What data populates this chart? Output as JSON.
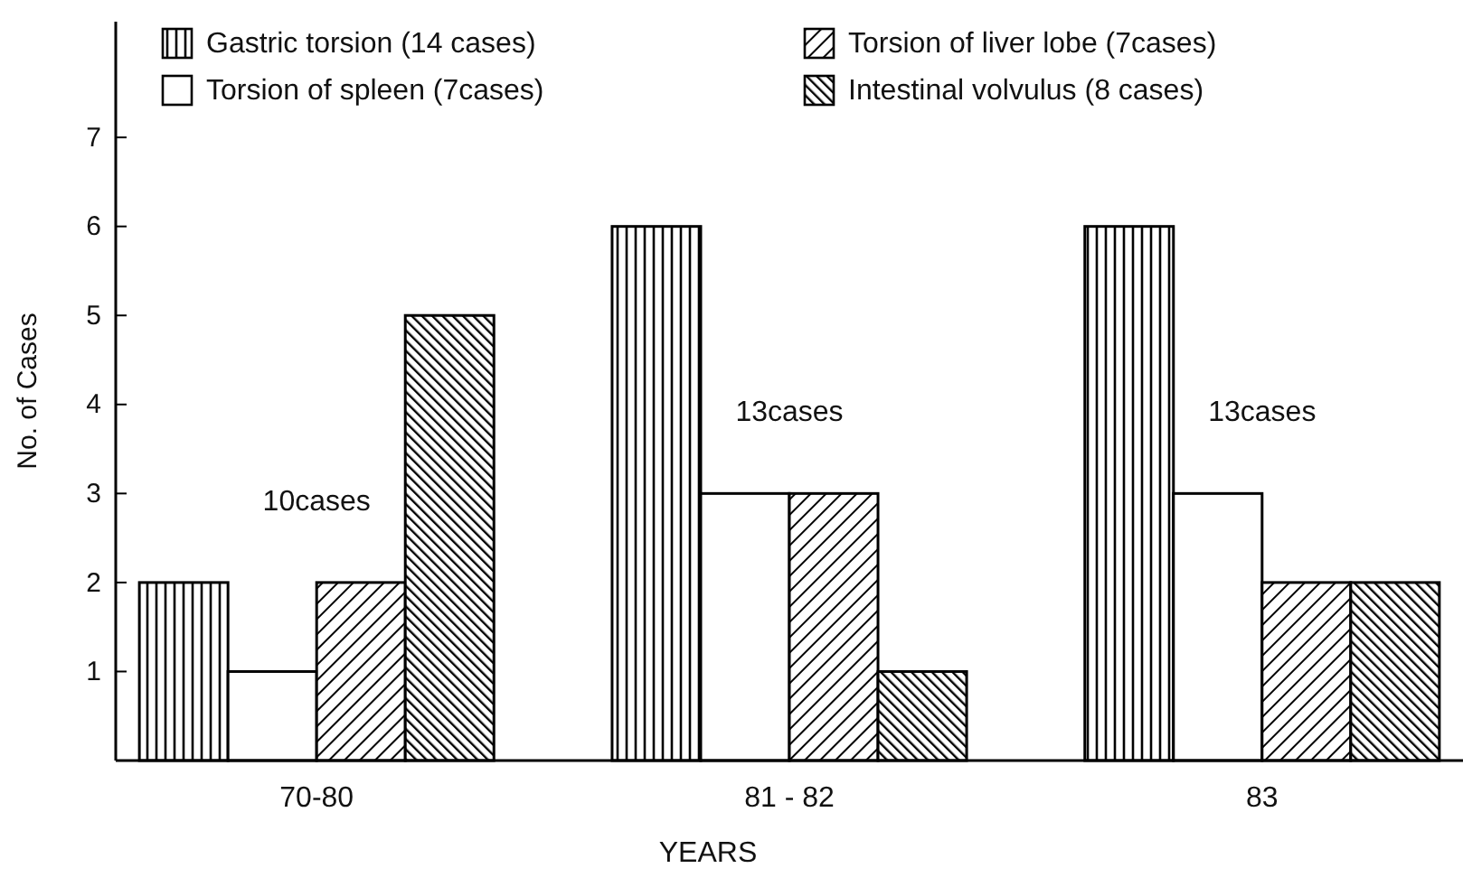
{
  "chart_data": {
    "type": "bar",
    "xlabel": "YEARS",
    "ylabel": "No. of Cases",
    "categories": [
      "70-80",
      "81 - 82",
      "83"
    ],
    "series": [
      {
        "name": "Gastric torsion (14 cases)",
        "color": "#000000",
        "values": [
          2,
          6,
          6
        ]
      },
      {
        "name": "Torsion of spleen (7cases)",
        "color": "#ffffff",
        "values": [
          1,
          3,
          3
        ]
      },
      {
        "name": "Torsion of liver lobe (7cases)",
        "color": "#000000",
        "values": [
          2,
          3,
          2
        ]
      },
      {
        "name": "Intestinal volvulus (8 cases)",
        "color": "#000000",
        "values": [
          5,
          1,
          2
        ]
      }
    ],
    "ylim": [
      0,
      8.3
    ],
    "yticks": [
      1,
      2,
      3,
      4,
      5,
      6,
      7
    ],
    "legend": "top",
    "grid": false,
    "totals": [
      "10cases",
      "13cases",
      "13cases"
    ]
  }
}
